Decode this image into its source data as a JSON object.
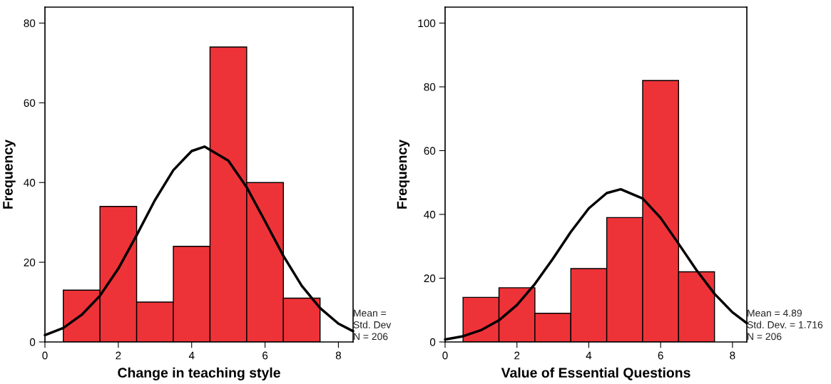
{
  "chart_data": [
    {
      "type": "histogram",
      "xlabel": "Change in teaching style",
      "ylabel": "Frequency",
      "bins": [
        0.5,
        1.5,
        2.5,
        3.5,
        4.5,
        5.5,
        6.5,
        7.5
      ],
      "xlim": [
        0,
        8.4
      ],
      "ylim": [
        0,
        84
      ],
      "xticks": [
        0,
        2,
        4,
        6,
        8
      ],
      "yticks": [
        0,
        20,
        40,
        60,
        80
      ],
      "grid": false,
      "legend": false,
      "series": [
        {
          "color": "#ee3338",
          "values": [
            13,
            34,
            10,
            24,
            74,
            40,
            11
          ]
        },
        {
          "type": "line",
          "color": "#000000",
          "x": [
            0,
            0.5,
            1,
            1.5,
            2,
            2.5,
            3,
            3.5,
            4,
            4.35,
            5,
            5.5,
            6,
            6.5,
            7,
            7.5,
            8,
            8.4
          ],
          "values": [
            1.7,
            3.5,
            6.8,
            11.6,
            18.4,
            26.8,
            35.6,
            43.1,
            47.9,
            49,
            45.5,
            38.8,
            30.3,
            21.6,
            14.1,
            8.5,
            4.6,
            2.7
          ]
        }
      ],
      "annotations": [
        "Mean =",
        "Std. Dev",
        "N = 206"
      ]
    },
    {
      "type": "histogram",
      "xlabel": "Value of Essential Questions",
      "ylabel": "Frequency",
      "bins": [
        0.5,
        1.5,
        2.5,
        3.5,
        4.5,
        5.5,
        6.5,
        7.5
      ],
      "xlim": [
        0,
        8.4
      ],
      "ylim": [
        0,
        105
      ],
      "xticks": [
        0,
        2,
        4,
        6,
        8
      ],
      "yticks": [
        0,
        20,
        40,
        60,
        80,
        100
      ],
      "grid": false,
      "legend": false,
      "series": [
        {
          "color": "#ee3338",
          "values": [
            14,
            17,
            9,
            23,
            39,
            82,
            22
          ]
        },
        {
          "type": "line",
          "color": "#000000",
          "x": [
            0,
            0.5,
            1,
            1.5,
            2,
            2.5,
            3,
            3.5,
            4,
            4.5,
            4.89,
            5.5,
            6,
            6.5,
            7,
            7.5,
            8,
            8.4
          ],
          "values": [
            0.8,
            1.8,
            3.7,
            6.8,
            11.6,
            18.2,
            26.1,
            34.5,
            41.9,
            46.7,
            47.9,
            45,
            38.9,
            30.8,
            22.5,
            15.1,
            9.3,
            5.9
          ]
        }
      ],
      "annotations": [
        "Mean = 4.89",
        "Std. Dev. = 1.716",
        "N = 206"
      ]
    }
  ]
}
